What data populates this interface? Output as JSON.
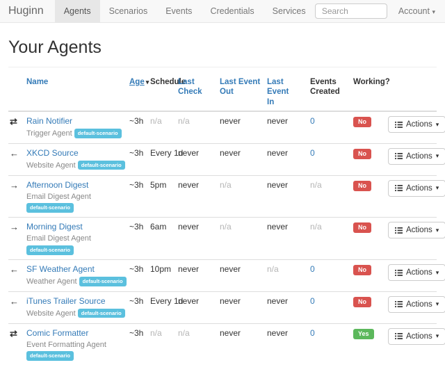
{
  "navbar": {
    "brand": "Huginn",
    "items": [
      {
        "label": "Agents",
        "active": true
      },
      {
        "label": "Scenarios",
        "active": false
      },
      {
        "label": "Events",
        "active": false
      },
      {
        "label": "Credentials",
        "active": false
      },
      {
        "label": "Services",
        "active": false
      }
    ],
    "search_placeholder": "Search",
    "account_label": "Account"
  },
  "page": {
    "title": "Your Agents"
  },
  "table": {
    "headers": [
      {
        "label": "Name",
        "link": true,
        "sorted": false
      },
      {
        "label": "Age",
        "link": true,
        "sorted": true
      },
      {
        "label": "Schedule",
        "link": false,
        "sorted": false
      },
      {
        "label": "Last\nCheck",
        "link": true,
        "sorted": false
      },
      {
        "label": "Last Event\nOut",
        "link": true,
        "sorted": false
      },
      {
        "label": "Last Event\nIn",
        "link": true,
        "sorted": false
      },
      {
        "label": "Events\nCreated",
        "link": false,
        "sorted": false
      },
      {
        "label": "Working?",
        "link": false,
        "sorted": false
      }
    ],
    "actions_label": "Actions",
    "rows": [
      {
        "icon": "exchange",
        "name": "Rain Notifier",
        "agent_type": "Trigger Agent",
        "scenario": "default-scenario",
        "age": "~3h",
        "schedule": "n/a",
        "last_check": "n/a",
        "last_event_out": "never",
        "last_event_in": "never",
        "events_created": "0",
        "working": "No"
      },
      {
        "icon": "arrow-left",
        "name": "XKCD Source",
        "agent_type": "Website Agent",
        "scenario": "default-scenario",
        "age": "~3h",
        "schedule": "Every 1d",
        "last_check": "never",
        "last_event_out": "never",
        "last_event_in": "never",
        "events_created": "0",
        "working": "No"
      },
      {
        "icon": "arrow-right",
        "name": "Afternoon Digest",
        "agent_type": "Email Digest Agent",
        "scenario": "default-scenario",
        "age": "~3h",
        "schedule": "5pm",
        "last_check": "never",
        "last_event_out": "n/a",
        "last_event_in": "never",
        "events_created": "n/a",
        "working": "No"
      },
      {
        "icon": "arrow-right",
        "name": "Morning Digest",
        "agent_type": "Email Digest Agent",
        "scenario": "default-scenario",
        "age": "~3h",
        "schedule": "6am",
        "last_check": "never",
        "last_event_out": "n/a",
        "last_event_in": "never",
        "events_created": "n/a",
        "working": "No"
      },
      {
        "icon": "arrow-left",
        "name": "SF Weather Agent",
        "agent_type": "Weather Agent",
        "scenario": "default-scenario",
        "age": "~3h",
        "schedule": "10pm",
        "last_check": "never",
        "last_event_out": "never",
        "last_event_in": "n/a",
        "events_created": "0",
        "working": "No"
      },
      {
        "icon": "arrow-left",
        "name": "iTunes Trailer Source",
        "agent_type": "Website Agent",
        "scenario": "default-scenario",
        "age": "~3h",
        "schedule": "Every 1d",
        "last_check": "never",
        "last_event_out": "never",
        "last_event_in": "never",
        "events_created": "0",
        "working": "No"
      },
      {
        "icon": "exchange",
        "name": "Comic Formatter",
        "agent_type": "Event Formatting Agent",
        "scenario": "default-scenario",
        "age": "~3h",
        "schedule": "n/a",
        "last_check": "n/a",
        "last_event_out": "never",
        "last_event_in": "never",
        "events_created": "0",
        "working": "Yes"
      }
    ]
  },
  "colors": {
    "link_blue": "#337ab7",
    "scenario_badge": "#5bc0de",
    "working_no": "#d9534f",
    "working_yes": "#5cb85c",
    "navbar_bg": "#f8f8f8",
    "navbar_active_bg": "#e7e7e7",
    "muted_text": "#b4b4b4"
  }
}
